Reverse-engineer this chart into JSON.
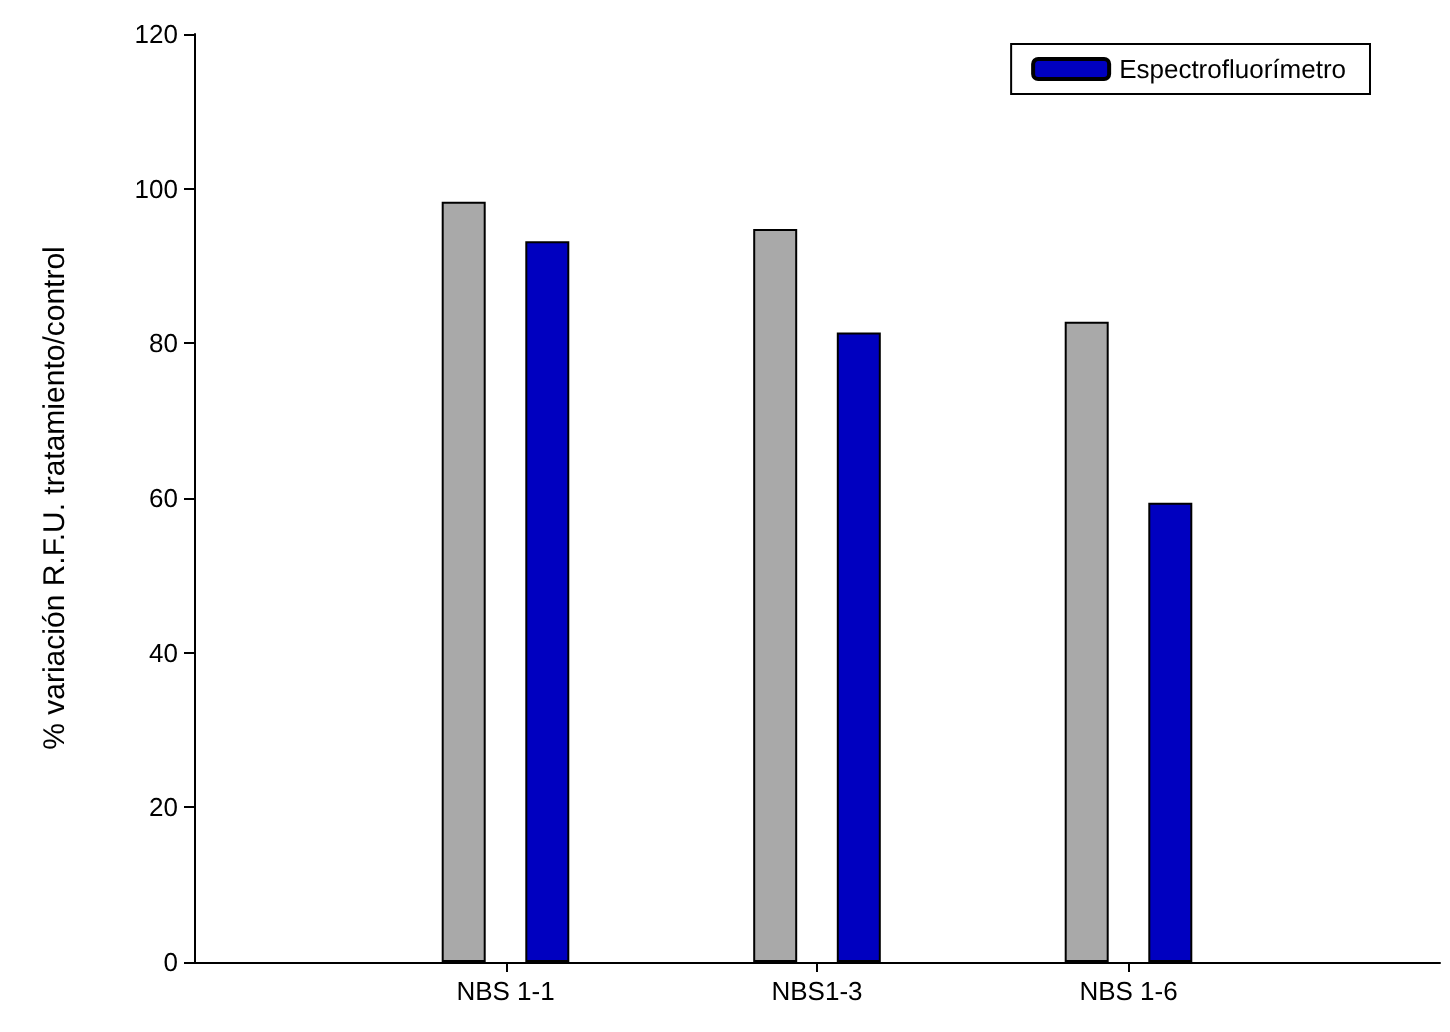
{
  "chart_data": {
    "type": "bar",
    "ylabel": "% variación R.F.U. tratamiento/control",
    "categories": [
      null,
      "NBS 1-1",
      "NBS1-3",
      "NBS 1-6",
      null
    ],
    "series": [
      {
        "color": "#a9a9a9",
        "values": [
          null,
          98.3,
          94.8,
          82.8,
          null
        ]
      },
      {
        "name": "Espectrofluorímetro",
        "color": "#0000c0",
        "values": [
          null,
          93.2,
          81.4,
          59.4,
          null
        ]
      }
    ],
    "ylim": [
      0,
      120
    ],
    "yticks": [
      0,
      20,
      40,
      60,
      80,
      100,
      120
    ],
    "grid": false,
    "legend": "top right"
  }
}
